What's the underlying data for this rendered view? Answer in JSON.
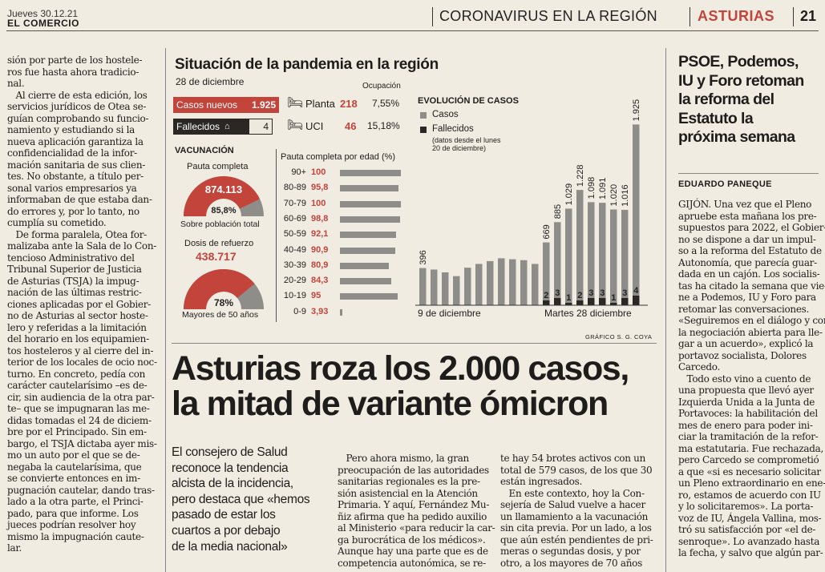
{
  "masthead": {
    "date": "Jueves 30.12.21",
    "paper": "EL COMERCIO",
    "section": "CORONAVIRUS EN LA REGIÓN",
    "region": "ASTURIAS",
    "page": "21"
  },
  "left_column": {
    "lines": [
      "sión por parte de los hostele-",
      "ros fue hasta ahora tradicio-",
      "nal.",
      "   Al cierre de esta edición, los",
      "servicios jurídicos de Otea se-",
      "guían comprobando su funcio-",
      "namiento y estudiando si la",
      "nueva aplicación garantiza la",
      "confidencialidad de la infor-",
      "mación sanitaria de sus clien-",
      "tes. No obstante, a título per-",
      "sonal varios empresarios ya",
      "informaban de que estaba dan-",
      "do errores y, por lo tanto, no",
      "cumplía su cometido.",
      "   De forma paralela, Otea for-",
      "malizaba ante la Sala de lo Con-",
      "tencioso Administrativo del",
      "Tribunal Superior de Justicia",
      "de Asturias (TSJA) la impug-",
      "nación de las últimas restric-",
      "ciones aplicadas por el Gobier-",
      "no de Asturias al sector hoste-",
      "lero y referidas a la limitación",
      "del horario en los equipamien-",
      "tos hosteleros y al cierre del in-",
      "terior de los locales de ocio noc-",
      "turno. En concreto, pedía con",
      "carácter cautelarísimo –es de-",
      "cir, sin audiencia de la otra par-",
      "te– que se impugnaran las me-",
      "didas tomadas el 24 de diciem-",
      "bre por el Principado. Sin em-",
      "bargo, el TSJA dictaba ayer mis-",
      "mo un auto por el que se de-",
      "negaba la cautelarísima, que",
      "se convierte entonces en im-",
      "pugnación cautelar, dando tras-",
      "lado a la otra parte, el Princi-",
      "pado, para que informe. Los",
      "jueces podrían resolver hoy",
      "mismo la impugnación caute-",
      "lar."
    ]
  },
  "infographic": {
    "title": "Situación de la pandemia en la región",
    "date": "28 de diciembre",
    "ocupacion_label": "Ocupación",
    "casos_nuevos_label": "Casos nuevos",
    "casos_nuevos_value": "1.925",
    "fallecidos_label": "Fallecidos",
    "fallecidos_value": "4",
    "planta_label": "Planta",
    "planta_value": "218",
    "planta_pct": "7,55%",
    "uci_label": "UCI",
    "uci_value": "46",
    "uci_pct": "15,18%",
    "vacunacion_label": "VACUNACIÓN",
    "pauta_completa_label": "Pauta completa",
    "pauta_completa_value": "874.113",
    "pauta_completa_pct": "85,8%",
    "pauta_completa_fraction": 0.858,
    "sobre_poblacion": "Sobre población total",
    "dosis_refuerzo_label": "Dosis de refuerzo",
    "dosis_refuerzo_value": "438.717",
    "dosis_refuerzo_pct": "78%",
    "dosis_refuerzo_fraction": 0.78,
    "mayores_label": "Mayores de 50 años",
    "edad_title": "Pauta completa por edad (%)",
    "edad_rows": [
      {
        "age": "90+",
        "value": "100"
      },
      {
        "age": "80-89",
        "value": "95,8"
      },
      {
        "age": "70-79",
        "value": "100"
      },
      {
        "age": "60-69",
        "value": "98,8"
      },
      {
        "age": "50-59",
        "value": "92,1"
      },
      {
        "age": "40-49",
        "value": "90,9"
      },
      {
        "age": "30-39",
        "value": "80,9"
      },
      {
        "age": "20-29",
        "value": "84,3"
      },
      {
        "age": "10-19",
        "value": "95"
      },
      {
        "age": "0-9",
        "value": "3,93"
      }
    ],
    "evolucion_title": "EVOLUCIÓN DE CASOS",
    "legend_casos": "Casos",
    "legend_fallecidos": "Fallecidos",
    "legend_note_1": "(datos desde el lunes",
    "legend_note_2": "20 de diciembre)",
    "start_label": "9 de diciembre",
    "end_label": "Martes 28 diciembre",
    "credit": "GRÁFICO S. G. COYA",
    "colors": {
      "red": "#c3443b",
      "dark": "#2a2725",
      "gray": "#8f8d8a",
      "light_gray": "#c9c6c0"
    }
  },
  "chart_data": {
    "type": "bar",
    "title": "EVOLUCIÓN DE CASOS",
    "categories": [
      "9 dic",
      "10 dic",
      "11 dic",
      "12 dic",
      "13 dic",
      "14 dic",
      "15 dic",
      "16 dic",
      "17 dic",
      "18 dic",
      "19 dic",
      "20 dic",
      "21 dic",
      "22 dic",
      "23 dic",
      "24 dic",
      "25 dic",
      "26 dic",
      "27 dic",
      "28 dic"
    ],
    "series": [
      {
        "name": "Casos",
        "values": [
          396,
          380,
          350,
          310,
          400,
          440,
          470,
          500,
          490,
          480,
          440,
          669,
          885,
          1029,
          1228,
          1098,
          1091,
          1020,
          1016,
          1925
        ]
      },
      {
        "name": "Fallecidos",
        "values": [
          null,
          null,
          null,
          null,
          null,
          null,
          null,
          null,
          null,
          null,
          null,
          2,
          3,
          1,
          2,
          3,
          3,
          1,
          3,
          4
        ]
      }
    ],
    "data_labels": [
      "396",
      "",
      "",
      "",
      "",
      "",
      "",
      "",
      "",
      "",
      "",
      "669",
      "885",
      "1.029",
      "1.228",
      "1.098",
      "1.091",
      "1.020",
      "1.016",
      "1.925"
    ],
    "ylim": [
      0,
      2000
    ],
    "grid": false,
    "legend": "top-left"
  },
  "headline": {
    "line1": "Asturias roza los 2.000 casos,",
    "line2": "la mitad de variante ómicron"
  },
  "deck": {
    "lines": [
      "El consejero de Salud",
      "reconoce la tendencia",
      "alcista de la incidencia,",
      "pero destaca que «hemos",
      "pasado de estar los",
      "cuartos a por debajo",
      "de la media nacional»"
    ]
  },
  "col2": {
    "lines": [
      "   Pero ahora mismo, la gran",
      "preocupación de las autoridades",
      "sanitarias regionales es la pre-",
      "sión asistencial en la Atención",
      "Primaria. Y aquí, Fernández Mu-",
      "ñiz afirma que ha pedido auxilio",
      "al Ministerio «para reducir la car-",
      "ga burocrática de los médicos».",
      "Aunque hay una parte que es de",
      "competencia autonómica, se re-"
    ]
  },
  "col3": {
    "lines": [
      "te hay 54 brotes activos con un",
      "total de 579 casos, de los que 30",
      "están ingresados.",
      "   En este contexto, hoy la Con-",
      "sejería de Salud vuelve a hacer",
      "un llamamiento a la vacunación",
      "sin cita previa. Por un lado, a los",
      "que aún estén pendientes de pri-",
      "meras o segundas dosis, y por",
      "otro, a los mayores de 70 años"
    ]
  },
  "right_article": {
    "headline_lines": [
      "PSOE, Podemos,",
      "IU y Foro retoman",
      "la reforma del",
      "Estatuto la",
      "próxima semana"
    ],
    "byline": "EDUARDO PANEQUE",
    "lines": [
      "GIJÓN. Una vez que el Pleno",
      "apruebe esta mañana los pre-",
      "supuestos para 2022, el Gobier-",
      "no se dispone a dar un impul-",
      "so a la reforma del Estatuto de",
      "Autonomía, que parecía guar-",
      "dada en un cajón. Los socialis-",
      "tas ha citado la semana que vie-",
      "ne a Podemos, IU y Foro para",
      "retomar las conversaciones.",
      "«Seguiremos en el diálogo y con",
      "la negociación abierta para lle-",
      "gar a un acuerdo», explicó la",
      "portavoz socialista, Dolores",
      "Carcedo.",
      "   Todo esto vino a cuento de",
      "una propuesta que llevó ayer",
      "Izquierda Unida a la Junta de",
      "Portavoces: la habilitación del",
      "mes de enero para poder ini-",
      "ciar la tramitación de la refor-",
      "ma estatutaria. Fue rechazada,",
      "pero Carcedo se comprometió",
      "a que «si es necesario solicitar",
      "un Pleno extraordinario en ene-",
      "ro, estamos de acuerdo con IU",
      "y lo solicitaremos». La porta-",
      "voz de IU, Ángela Vallina, mos-",
      "tró su satisfacción por «el de-",
      "senroque». Lo avanzado hasta",
      "la fecha, y salvo que algún par-"
    ]
  }
}
